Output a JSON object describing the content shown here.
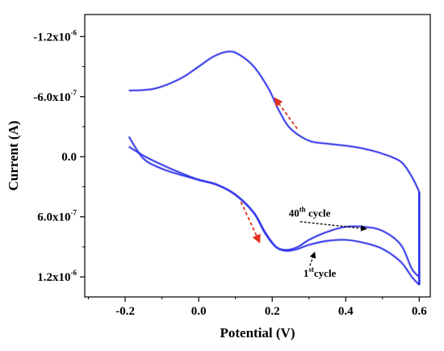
{
  "chart_data": {
    "type": "line",
    "xlabel": "Potential (V)",
    "ylabel": "Current (A)",
    "xlim": [
      -0.31,
      0.63
    ],
    "ylim": [
      -1.42e-06,
      1.4e-06
    ],
    "y_inverted": true,
    "x_ticks": [
      -0.2,
      0.0,
      0.2,
      0.4,
      0.6
    ],
    "x_tick_labels": [
      "-0.2",
      "0.0",
      "0.2",
      "0.4",
      "0.6"
    ],
    "y_ticks": [
      -1.2e-06,
      -6e-07,
      0.0,
      6e-07,
      1.2e-06
    ],
    "y_tick_labels": [
      "-1.2x10",
      "-6.0x10",
      "0.0",
      "6.0x10",
      "1.2x10"
    ],
    "y_tick_exponents": [
      "-6",
      "-7",
      "",
      "-7",
      "-6"
    ],
    "grid": false,
    "legend": "none",
    "line_color": "#2a2ee8",
    "arrow_color": "#e0301e",
    "series": [
      {
        "x": [
          -0.19,
          -0.12,
          -0.05,
          0.0,
          0.04,
          0.08,
          0.11,
          0.15,
          0.19,
          0.22,
          0.25,
          0.3,
          0.35,
          0.4,
          0.45,
          0.5,
          0.55,
          0.58,
          0.6
        ],
        "y": [
          -6.6e-07,
          -6.8e-07,
          -7.8e-07,
          -9e-07,
          -1e-06,
          -1.05e-06,
          -1.02e-06,
          -9e-07,
          -6.8e-07,
          -4.5e-07,
          -2.8e-07,
          -1.6e-07,
          -1.3e-07,
          -1.1e-07,
          -8e-08,
          -3e-08,
          5e-08,
          2e-07,
          3.5e-07
        ]
      },
      {
        "x": [
          0.6,
          0.58,
          0.55,
          0.5,
          0.45,
          0.4,
          0.35,
          0.3,
          0.27,
          0.24,
          0.21,
          0.18,
          0.15,
          0.1,
          0.05,
          0.0,
          -0.05,
          -0.1,
          -0.15,
          -0.19
        ],
        "y": [
          1.2e-06,
          1.12e-06,
          8.8e-07,
          7.4e-07,
          7e-07,
          7e-07,
          7.5e-07,
          8.3e-07,
          9e-07,
          9.3e-07,
          9e-07,
          7.6e-07,
          5.6e-07,
          3.8e-07,
          2.8e-07,
          2.3e-07,
          1.8e-07,
          1.2e-07,
          2e-08,
          -2e-07
        ]
      },
      {
        "x": [
          0.6,
          0.58,
          0.55,
          0.5,
          0.45,
          0.4,
          0.35,
          0.3,
          0.27,
          0.24,
          0.21,
          0.18,
          0.15,
          0.1,
          0.05,
          0.0,
          -0.05,
          -0.1,
          -0.15,
          -0.19
        ],
        "y": [
          1.28e-06,
          1.2e-06,
          1.05e-06,
          9.2e-07,
          8.6e-07,
          8.3e-07,
          8.4e-07,
          8.8e-07,
          9.2e-07,
          9.4e-07,
          9e-07,
          7.5e-07,
          5.6e-07,
          3.8e-07,
          2.8e-07,
          2.3e-07,
          1.6e-07,
          8e-08,
          -1e-08,
          -1e-07
        ]
      }
    ],
    "annotations": [
      {
        "text": "40",
        "sup": "th",
        "rest": " cycle",
        "at_x": 0.455,
        "at_y": 7.2e-07,
        "label_x": 0.245,
        "label_y": 6e-07
      },
      {
        "text": "1",
        "sup": "st",
        "rest": "cycle",
        "at_x": 0.315,
        "at_y": 9.6e-07,
        "label_x": 0.285,
        "label_y": 1.2e-06
      }
    ],
    "direction_arrows": [
      {
        "x0": 0.268,
        "y0": -2.8e-07,
        "x1": 0.208,
        "y1": -5.8e-07
      },
      {
        "x0": 0.115,
        "y0": 4.5e-07,
        "x1": 0.165,
        "y1": 8.5e-07
      }
    ]
  }
}
